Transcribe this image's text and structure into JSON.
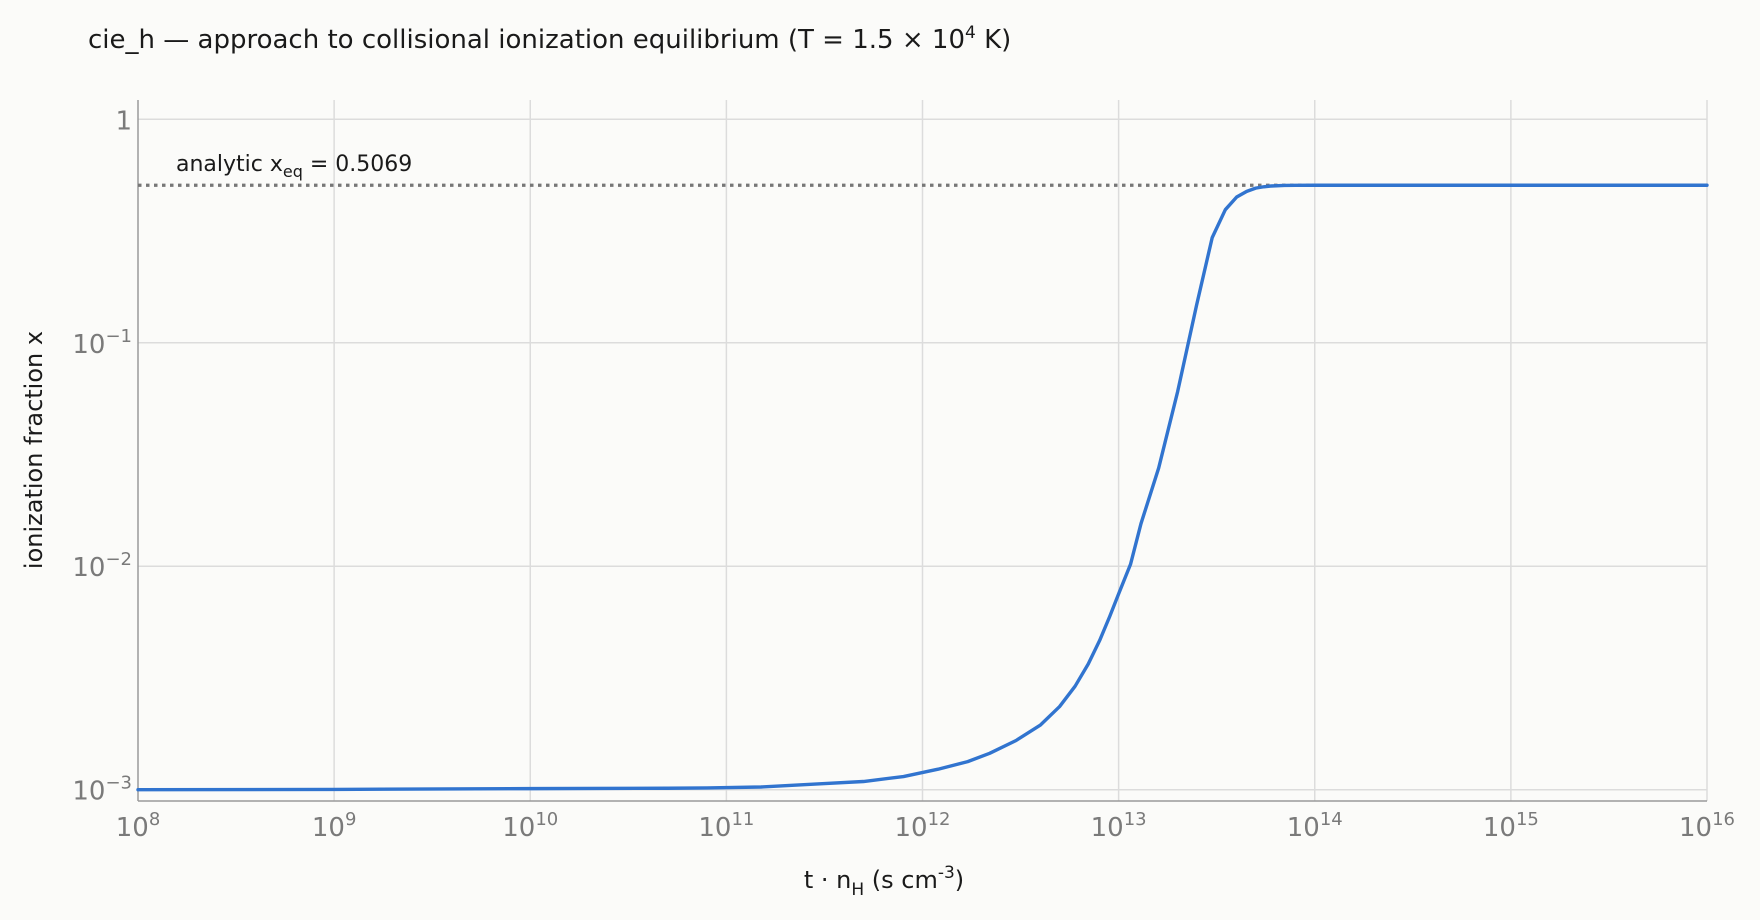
{
  "chart_data": {
    "type": "line",
    "title": {
      "prefix": "cie_h — approach to collisional ionization equilibrium (T = 1.5 × 10",
      "sup": "4",
      "suffix": " K)"
    },
    "xlabel": {
      "prefix": "t · n",
      "sub": "H",
      "middle": "  (s cm",
      "sup": "-3",
      "suffix": ")"
    },
    "ylabel": "ionization fraction x",
    "xscale": "log",
    "yscale": "log",
    "xlim": [
      100000000.0,
      1e+16
    ],
    "ylim": [
      0.00089,
      1.22
    ],
    "grid": true,
    "x_ticks": [
      {
        "value": 100000000.0,
        "base": "10",
        "exp": "8"
      },
      {
        "value": 1000000000.0,
        "base": "10",
        "exp": "9"
      },
      {
        "value": 10000000000.0,
        "base": "10",
        "exp": "10"
      },
      {
        "value": 100000000000.0,
        "base": "10",
        "exp": "11"
      },
      {
        "value": 1000000000000.0,
        "base": "10",
        "exp": "12"
      },
      {
        "value": 10000000000000.0,
        "base": "10",
        "exp": "13"
      },
      {
        "value": 100000000000000.0,
        "base": "10",
        "exp": "14"
      },
      {
        "value": 1000000000000000.0,
        "base": "10",
        "exp": "15"
      },
      {
        "value": 1e+16,
        "base": "10",
        "exp": "16"
      }
    ],
    "y_ticks": [
      {
        "value": 0.001,
        "base": "10",
        "exp": "−3"
      },
      {
        "value": 0.01,
        "base": "10",
        "exp": "−2"
      },
      {
        "value": 0.1,
        "base": "10",
        "exp": "−1"
      },
      {
        "value": 1,
        "base": "1",
        "exp": ""
      }
    ],
    "series": [
      {
        "color": "#3174cf",
        "x": [
          100000000.0,
          1000000000.0,
          10000000000.0,
          50000000000.0,
          80000000000.0,
          150000000000.0,
          300000000000.0,
          500000000000.0,
          800000000000.0,
          1200000000000.0,
          1700000000000.0,
          2200000000000.0,
          3000000000000.0,
          4000000000000.0,
          5000000000000.0,
          6000000000000.0,
          7000000000000.0,
          8000000000000.0,
          9000000000000.0,
          10000000000000.0,
          11500000000000.0,
          13000000000000.0,
          16000000000000.0,
          20000000000000.0,
          25000000000000.0,
          30000000000000.0,
          35000000000000.0,
          40000000000000.0,
          45000000000000.0,
          50000000000000.0,
          55000000000000.0,
          60000000000000.0,
          70000000000000.0,
          80000000000000.0,
          100000000000000.0,
          1000000000000000.0,
          1e+16
        ],
        "y": [
          0.001,
          0.001003,
          0.001011,
          0.001015,
          0.001018,
          0.001028,
          0.001062,
          0.001088,
          0.001145,
          0.001235,
          0.001335,
          0.001455,
          0.00166,
          0.00195,
          0.002355,
          0.002905,
          0.00365,
          0.00465,
          0.00595,
          0.00752,
          0.0102,
          0.0155,
          0.0275,
          0.0605,
          0.148,
          0.2955,
          0.394,
          0.449,
          0.476,
          0.492,
          0.499,
          0.503,
          0.5058,
          0.5064,
          0.5068,
          0.5069,
          0.5069
        ]
      }
    ],
    "reference_line": {
      "y": 0.5069,
      "color": "#777777",
      "style": "dotted",
      "label": {
        "prefix": "analytic  x",
        "sub": "eq",
        "suffix": " = 0.5069"
      }
    }
  }
}
